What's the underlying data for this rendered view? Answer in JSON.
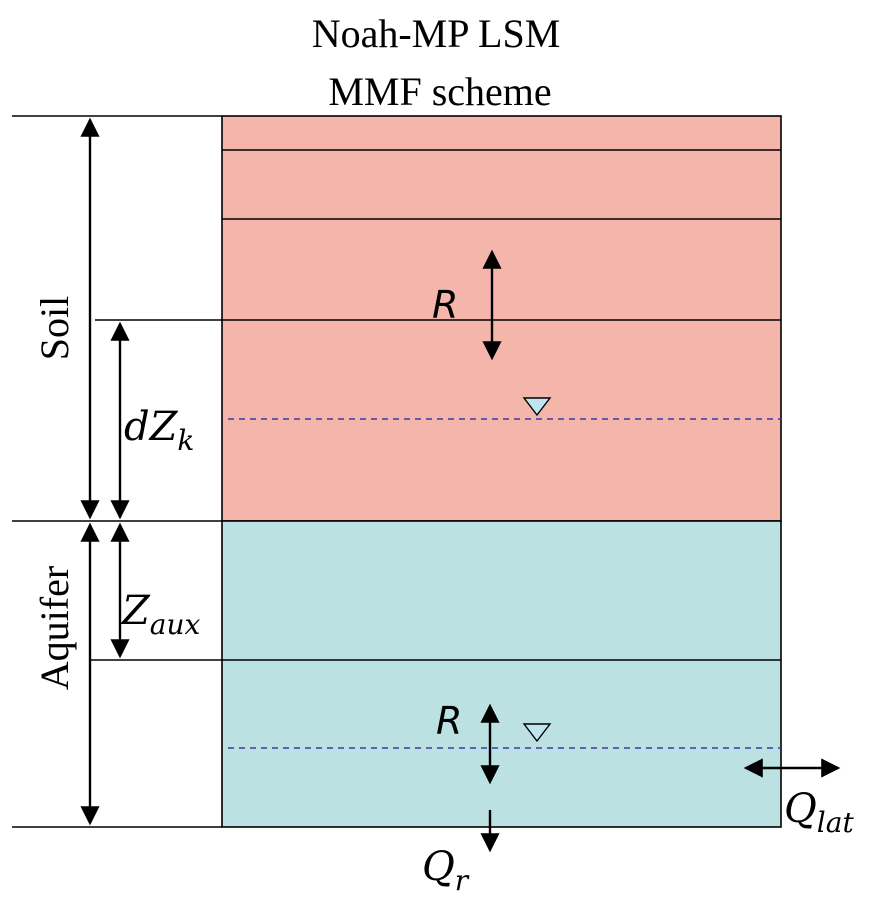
{
  "title": {
    "line1": "Noah-MP LSM",
    "line2": "MMF scheme"
  },
  "layers": {
    "soil_label": "Soil",
    "aquifer_label": "Aquifer"
  },
  "symbols": {
    "recharge_upper": "R",
    "recharge_lower": "R",
    "dz_base": "dZ",
    "dz_sub": "k",
    "zaux_base": "Z",
    "zaux_sub": "aux",
    "qlat_base": "Q",
    "qlat_sub": "lat",
    "qr_base": "Q",
    "qr_sub": "r"
  },
  "colors": {
    "soil": "#f4b6ab",
    "aquifer": "#bce1e3",
    "water_table_marker": "#bfe6ee",
    "water_table_line": "#3b3ba8"
  }
}
